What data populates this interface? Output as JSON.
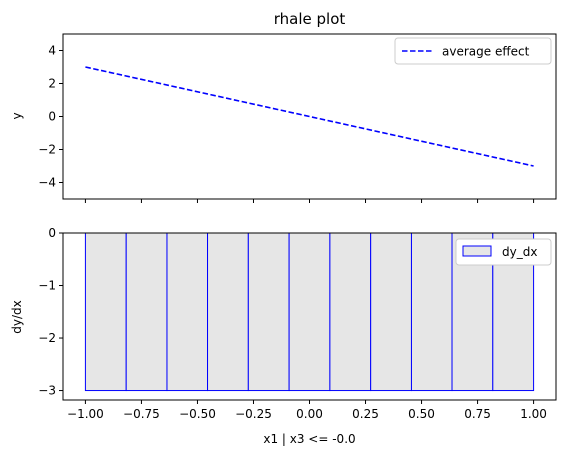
{
  "chart_data": [
    {
      "type": "line",
      "title": "rhale plot",
      "ylabel": "y",
      "xlim": [
        -1.1,
        1.1
      ],
      "ylim": [
        -5,
        5
      ],
      "yticks": [
        -4,
        -2,
        0,
        2,
        4
      ],
      "ytick_labels": [
        "−4",
        "−2",
        "0",
        "2",
        "4"
      ],
      "x_tick_labels_shown": false,
      "legend_position": "top-right",
      "series": [
        {
          "name": "average effect",
          "color": "#0000ff",
          "style": "dashed",
          "x": [
            -1.0,
            1.0
          ],
          "y": [
            3.0,
            -3.0
          ]
        }
      ]
    },
    {
      "type": "bar",
      "xlabel": "x1 | x3 <= -0.0",
      "ylabel": "dy/dx",
      "xlim": [
        -1.1,
        1.1
      ],
      "ylim": [
        -3.18,
        0
      ],
      "xticks": [
        -1.0,
        -0.75,
        -0.5,
        -0.25,
        0.0,
        0.25,
        0.5,
        0.75,
        1.0
      ],
      "xtick_labels": [
        "−1.00",
        "−0.75",
        "−0.50",
        "−0.25",
        "0.00",
        "0.25",
        "0.50",
        "0.75",
        "1.00"
      ],
      "yticks": [
        0,
        -1,
        -2,
        -3
      ],
      "ytick_labels": [
        "0",
        "−1",
        "−2",
        "−3"
      ],
      "legend_position": "top-right",
      "series": [
        {
          "name": "dy_dx",
          "edge_color": "#0000ff",
          "fill_color": "#e6e6e6",
          "bin_edges": [
            -1.0,
            -0.818,
            -0.636,
            -0.455,
            -0.273,
            -0.091,
            0.091,
            0.273,
            0.455,
            0.636,
            0.818,
            1.0
          ],
          "values": [
            -3,
            -3,
            -3,
            -3,
            -3,
            -3,
            -3,
            -3,
            -3,
            -3,
            -3
          ]
        }
      ]
    }
  ]
}
